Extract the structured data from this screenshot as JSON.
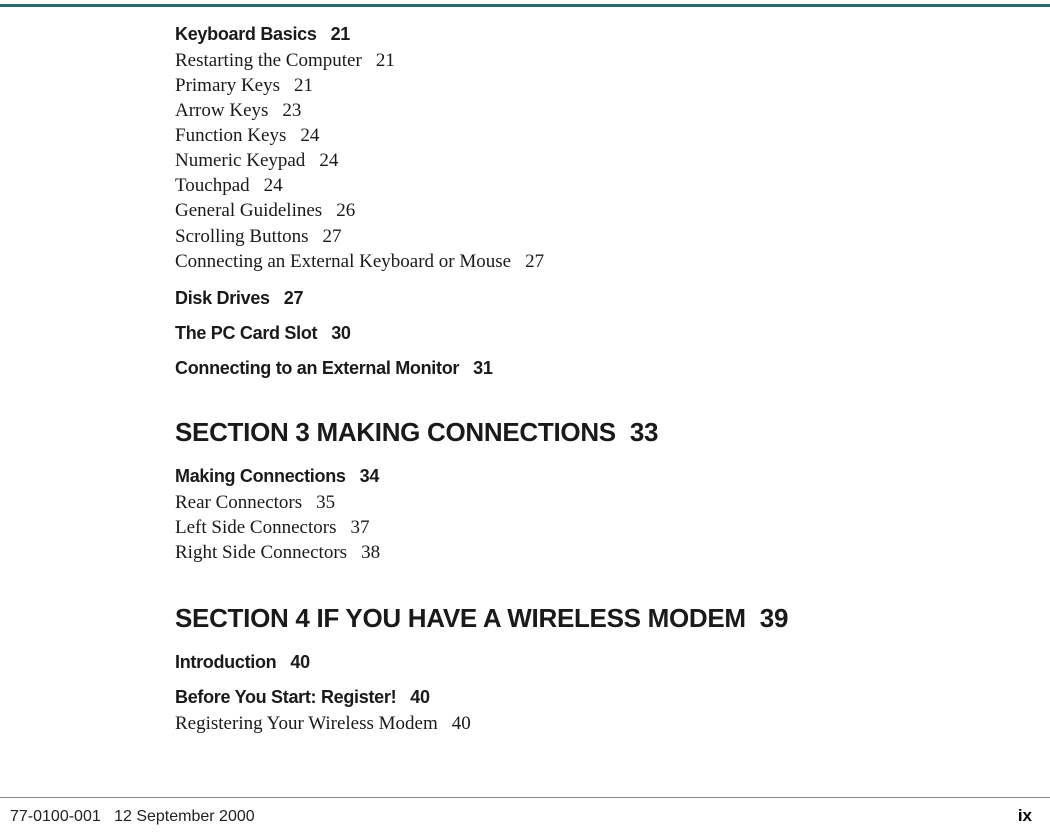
{
  "colors": {
    "top_rule": "#2a6a6a",
    "footer_rule": "#888888",
    "text": "#1a1a1a",
    "background": "#ffffff"
  },
  "typography": {
    "heading_family": "Arial",
    "body_family": "Times New Roman",
    "section_fontsize": 26,
    "topic_head_fontsize": 18,
    "entry_fontsize": 19,
    "footer_fontsize": 16
  },
  "toc": {
    "group1": {
      "head": {
        "label": "Keyboard Basics",
        "page": "21"
      },
      "entries": [
        {
          "label": "Restarting the Computer",
          "page": "21"
        },
        {
          "label": "Primary Keys",
          "page": "21"
        },
        {
          "label": "Arrow Keys",
          "page": "23"
        },
        {
          "label": "Function Keys",
          "page": "24"
        },
        {
          "label": "Numeric Keypad",
          "page": "24"
        },
        {
          "label": "Touchpad",
          "page": "24"
        },
        {
          "label": "General Guidelines",
          "page": "26"
        },
        {
          "label": "Scrolling Buttons",
          "page": "27"
        },
        {
          "label": "Connecting an External Keyboard or Mouse",
          "page": "27"
        }
      ]
    },
    "group2": {
      "head": {
        "label": "Disk Drives",
        "page": "27"
      }
    },
    "group3": {
      "head": {
        "label": "The PC Card Slot",
        "page": "30"
      }
    },
    "group4": {
      "head": {
        "label": "Connecting to an External Monitor",
        "page": "31"
      }
    },
    "section3": {
      "title": "SECTION 3  MAKING CONNECTIONS",
      "page": "33",
      "group1": {
        "head": {
          "label": "Making Connections",
          "page": "34"
        },
        "entries": [
          {
            "label": "Rear Connectors",
            "page": "35"
          },
          {
            "label": "Left Side Connectors",
            "page": "37"
          },
          {
            "label": "Right Side Connectors",
            "page": "38"
          }
        ]
      }
    },
    "section4": {
      "title": "SECTION 4  IF YOU HAVE A WIRELESS MODEM",
      "page": "39",
      "group1": {
        "head": {
          "label": " Introduction",
          "page": "40"
        }
      },
      "group2": {
        "head": {
          "label": "Before You Start:  Register!",
          "page": "40"
        },
        "entries": [
          {
            "label": "Registering Your Wireless Modem",
            "page": "40"
          }
        ]
      }
    }
  },
  "footer": {
    "doc_number": "77-0100-001",
    "date": "12 September 2000",
    "page_num": "ix"
  }
}
